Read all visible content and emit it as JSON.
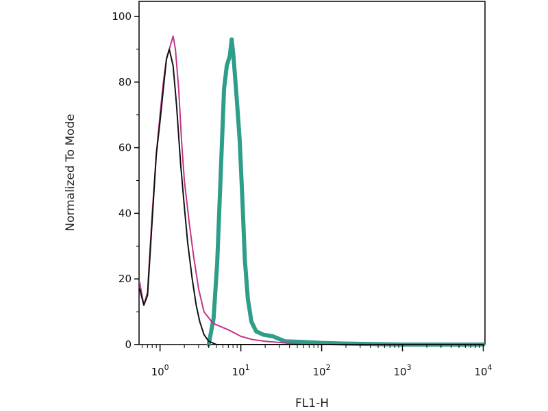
{
  "chart_data": {
    "type": "line",
    "title": "",
    "xlabel": "FL1-H",
    "ylabel": "Normalized To Mode",
    "xscale": "log",
    "xlim": [
      0.55,
      10500
    ],
    "ylim": [
      0,
      100
    ],
    "grid": false,
    "legend": "none",
    "y_ticks": [
      {
        "value": 0,
        "label": "0"
      },
      {
        "value": 20,
        "label": "20"
      },
      {
        "value": 40,
        "label": "40"
      },
      {
        "value": 60,
        "label": "60"
      },
      {
        "value": 80,
        "label": "80"
      },
      {
        "value": 100,
        "label": "100"
      }
    ],
    "x_ticks": [
      {
        "value": 1,
        "base": "10",
        "exp": "0"
      },
      {
        "value": 10,
        "base": "10",
        "exp": "1"
      },
      {
        "value": 100,
        "base": "10",
        "exp": "2"
      },
      {
        "value": 1000,
        "base": "10",
        "exp": "3"
      },
      {
        "value": 10000,
        "base": "10",
        "exp": "4"
      }
    ],
    "series": [
      {
        "color": "#2e9e88",
        "width": 6,
        "points": [
          [
            4.0,
            0
          ],
          [
            4.6,
            8
          ],
          [
            5.1,
            25
          ],
          [
            5.7,
            55
          ],
          [
            6.2,
            78
          ],
          [
            6.7,
            85
          ],
          [
            7.3,
            88
          ],
          [
            7.7,
            93
          ],
          [
            8.1,
            88
          ],
          [
            8.9,
            75
          ],
          [
            9.7,
            62
          ],
          [
            10.5,
            43
          ],
          [
            11.2,
            26
          ],
          [
            12.2,
            14
          ],
          [
            13.5,
            7
          ],
          [
            15.5,
            4
          ],
          [
            19,
            3
          ],
          [
            25,
            2.5
          ],
          [
            35,
            1
          ],
          [
            60,
            0.8
          ],
          [
            100,
            0.5
          ],
          [
            200,
            0.3
          ],
          [
            1000,
            0
          ],
          [
            10000,
            0
          ]
        ]
      },
      {
        "color": "#c2338a",
        "width": 2,
        "points": [
          [
            0.56,
            19
          ],
          [
            0.63,
            12
          ],
          [
            0.7,
            16
          ],
          [
            0.8,
            40
          ],
          [
            0.9,
            58
          ],
          [
            1.0,
            70
          ],
          [
            1.1,
            80
          ],
          [
            1.2,
            87
          ],
          [
            1.3,
            90
          ],
          [
            1.45,
            94
          ],
          [
            1.55,
            90
          ],
          [
            1.7,
            78
          ],
          [
            1.85,
            62
          ],
          [
            2.0,
            50
          ],
          [
            2.3,
            37
          ],
          [
            2.6,
            27
          ],
          [
            3.0,
            17
          ],
          [
            3.5,
            10
          ],
          [
            4.5,
            6.5
          ],
          [
            7,
            4.5
          ],
          [
            10,
            2.5
          ],
          [
            14,
            1.5
          ],
          [
            20,
            1
          ],
          [
            35,
            0.5
          ],
          [
            60,
            0
          ],
          [
            10000,
            0
          ]
        ]
      },
      {
        "color": "#111111",
        "width": 2,
        "points": [
          [
            0.56,
            17
          ],
          [
            0.63,
            12
          ],
          [
            0.7,
            15
          ],
          [
            0.8,
            38
          ],
          [
            0.9,
            58
          ],
          [
            1.0,
            68
          ],
          [
            1.1,
            78
          ],
          [
            1.2,
            87
          ],
          [
            1.3,
            90
          ],
          [
            1.45,
            85
          ],
          [
            1.6,
            73
          ],
          [
            1.8,
            55
          ],
          [
            2.0,
            42
          ],
          [
            2.2,
            31
          ],
          [
            2.5,
            20
          ],
          [
            2.8,
            12
          ],
          [
            3.1,
            7
          ],
          [
            3.5,
            3
          ],
          [
            4.0,
            1
          ],
          [
            5,
            0
          ],
          [
            10000,
            0
          ]
        ]
      }
    ]
  }
}
